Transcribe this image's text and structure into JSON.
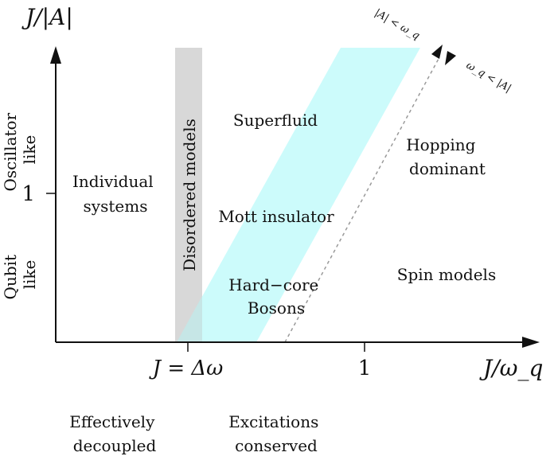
{
  "axes": {
    "y_label": "J/|A|",
    "x_label": "J/ω_q",
    "y_tick_label": "1",
    "x_tick_delta_label": "J = Δω",
    "x_tick_one_label": "1"
  },
  "y_regions": {
    "upper": [
      "Oscillator",
      "like"
    ],
    "lower": [
      "Qubit",
      "like"
    ]
  },
  "regions": {
    "individual": [
      "Individual",
      "systems"
    ],
    "disordered": "Disordered models",
    "superfluid": "Superfluid",
    "mott": "Mott insulator",
    "hardcore": [
      "Hard−core",
      "Bosons"
    ],
    "hopping": [
      "Hopping",
      "dominant"
    ],
    "spin": "Spin models"
  },
  "boundary_labels": {
    "upper_left": "|A| < ω_q",
    "lower_right": "ω_q < |A|"
  },
  "bottom_labels": {
    "decoupled": [
      "Effectively",
      "decoupled"
    ],
    "conserved": [
      "Excitations",
      "conserved"
    ]
  },
  "colors": {
    "cyan_band": "#ccfbfb",
    "gray_band": "#d8d8d8",
    "axis": "#111111",
    "dashed_line": "#999999"
  }
}
